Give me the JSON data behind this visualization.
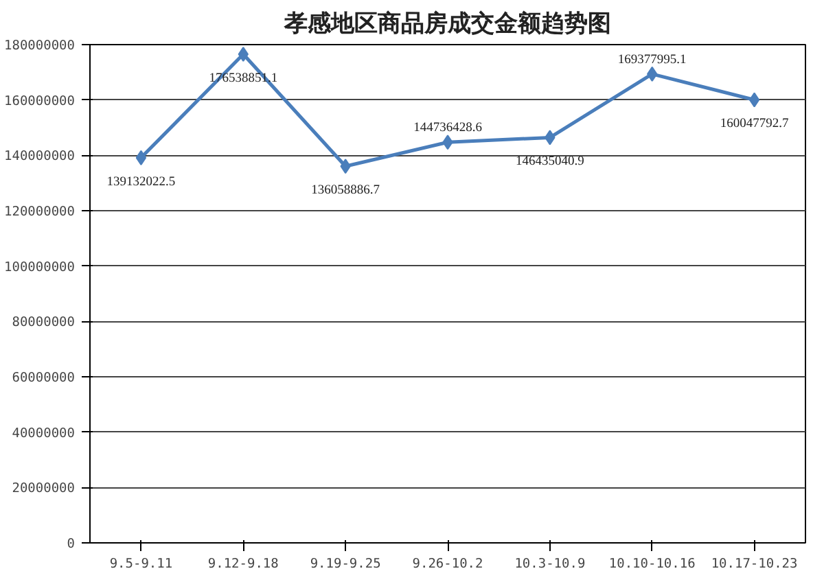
{
  "chart_data": {
    "type": "line",
    "title": "孝感地区商品房成交金额趋势图",
    "categories": [
      "9.5-9.11",
      "9.12-9.18",
      "9.19-9.25",
      "9.26-10.2",
      "10.3-10.9",
      "10.10-10.16",
      "10.17-10.23"
    ],
    "values": [
      139132022.5,
      176538851.1,
      136058886.7,
      144736428.6,
      146435040.9,
      169377995.1,
      160047792.7
    ],
    "color": "#4a7ebb",
    "marker": "diamond",
    "data_labels": true,
    "ylim": [
      0,
      180000000
    ],
    "yticks": [
      0,
      20000000,
      40000000,
      60000000,
      80000000,
      100000000,
      120000000,
      140000000,
      160000000,
      180000000
    ],
    "grid": "y"
  }
}
